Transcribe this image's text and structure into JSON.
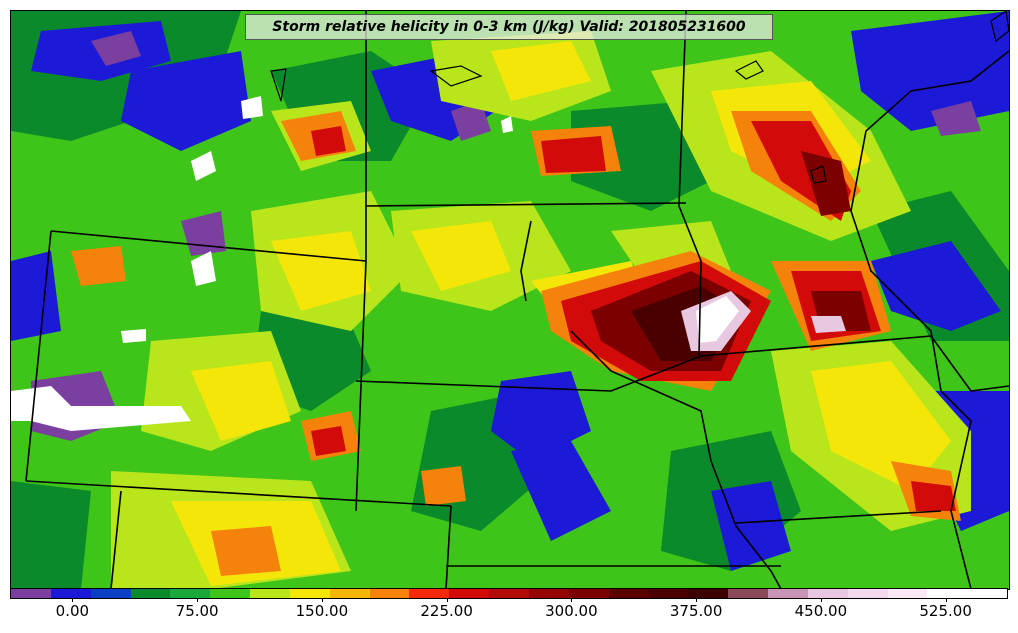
{
  "title": "Storm relative helicity in 0-3 km (J/kg) Valid: 201805231600",
  "colorbar": {
    "colors": [
      "#7b3fa0",
      "#1c1ad6",
      "#0b3fc4",
      "#0a8a2a",
      "#1aa83a",
      "#3fc41a",
      "#b8e61a",
      "#f5e60a",
      "#f5b80a",
      "#f5820a",
      "#f5280a",
      "#d20a0a",
      "#b40a0a",
      "#960505",
      "#7d0000",
      "#5a0000",
      "#4a0000",
      "#3c0000",
      "#8a4a5a",
      "#c896b4",
      "#e8c8e0",
      "#f4d8ee",
      "#fae8f6",
      "#ffffff",
      "#ffffff"
    ],
    "ticks": [
      "0.00",
      "75.00",
      "150.00",
      "225.00",
      "300.00",
      "375.00",
      "450.00",
      "525.00"
    ],
    "tick_values": [
      0,
      75,
      150,
      225,
      300,
      375,
      450,
      525
    ],
    "range": [
      -37.5,
      562.5
    ]
  },
  "palette": {
    "green": "#3fc41a",
    "dark_green": "#0a8a2a",
    "yellow_green": "#b8e61a",
    "yellow": "#f5e60a",
    "orange": "#f5b80a",
    "red": "#d20a0a",
    "dark_red": "#7d0000",
    "maroon": "#4a0000",
    "blue": "#1c1ad6",
    "purple": "#7b3fa0",
    "white": "#ffffff"
  }
}
